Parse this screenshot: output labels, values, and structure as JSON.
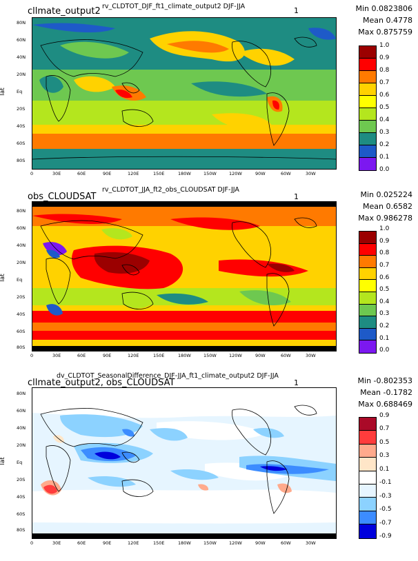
{
  "panels": [
    {
      "left_title": "cllmate_output2",
      "center_title": "rv_CLDTOT_DJF_ft1_climate_output2  DJF-JJA",
      "one_label": "1",
      "stats": {
        "min": "Min 0.0823806",
        "mean": "Mean 0.4778",
        "max": "Max 0.875759"
      },
      "y_label": "lat",
      "legend_labels": [
        "1.0",
        "0.9",
        "0.8",
        "0.7",
        "0.6",
        "0.5",
        "0.4",
        "0.3",
        "0.2",
        "0.1",
        "0.0"
      ],
      "legend_colors": [
        "#9b0000",
        "#ff0000",
        "#ff7a00",
        "#ffd200",
        "#ffff00",
        "#b4e61e",
        "#6ec850",
        "#1e8c82",
        "#1e5ac8",
        "#7c18f0"
      ],
      "lat_ticks": [
        "80N",
        "60N",
        "40N",
        "20N",
        "Eq",
        "20S",
        "40S",
        "60S",
        "80S"
      ],
      "lon_ticks": [
        "0",
        "30E",
        "60E",
        "90E",
        "120E",
        "150E",
        "180W",
        "150W",
        "120W",
        "90W",
        "60W",
        "30W"
      ]
    },
    {
      "left_title": "obs_CLOUDSAT",
      "center_title": "rv_CLDTOT_JJA_ft2_obs_CLOUDSAT  DJF-JJA",
      "one_label": "1",
      "stats": {
        "min": "Min 0.025224",
        "mean": "Mean 0.6582",
        "max": "Max 0.986278"
      },
      "y_label": "lat",
      "legend_labels": [
        "1.0",
        "0.9",
        "0.8",
        "0.7",
        "0.6",
        "0.5",
        "0.4",
        "0.3",
        "0.2",
        "0.1",
        "0.0"
      ],
      "legend_colors": [
        "#9b0000",
        "#ff0000",
        "#ff7a00",
        "#ffd200",
        "#ffff00",
        "#b4e61e",
        "#6ec850",
        "#1e8c82",
        "#1e5ac8",
        "#7c18f0"
      ],
      "lat_ticks": [
        "80N",
        "60N",
        "40N",
        "20N",
        "Eq",
        "20S",
        "40S",
        "60S",
        "80S"
      ],
      "lon_ticks": [
        "0",
        "30E",
        "60E",
        "90E",
        "120E",
        "150E",
        "180W",
        "150W",
        "120W",
        "90W",
        "60W",
        "30W"
      ]
    },
    {
      "left_title": "cllmate_output2, obs_CLOUDSAT",
      "center_title": "dv_CLDTOT_SeasonalDifference_DJF-JJA_ft1_climate_output2  DJF-JJA",
      "one_label": "1",
      "stats": {
        "min": "Min -0.802353",
        "mean": "Mean -0.1782",
        "max": "Max 0.688469"
      },
      "y_label": "lat",
      "legend_labels": [
        "0.9",
        "0.7",
        "0.5",
        "0.3",
        "0.1",
        "-0.1",
        "-0.3",
        "-0.5",
        "-0.7",
        "-0.9"
      ],
      "legend_colors": [
        "#aa0a28",
        "#ff3c3c",
        "#ffaa8c",
        "#ffe6c8",
        "#ffffff",
        "#e6f5ff",
        "#8cd2ff",
        "#3c8cff",
        "#0000dc"
      ],
      "lat_ticks": [
        "80N",
        "60N",
        "40N",
        "20N",
        "Eq",
        "20S",
        "40S",
        "60S",
        "80S"
      ],
      "lon_ticks": [
        "0",
        "30E",
        "60E",
        "90E",
        "120E",
        "150E",
        "180W",
        "150W",
        "120W",
        "90W",
        "60W",
        "30W"
      ]
    }
  ]
}
